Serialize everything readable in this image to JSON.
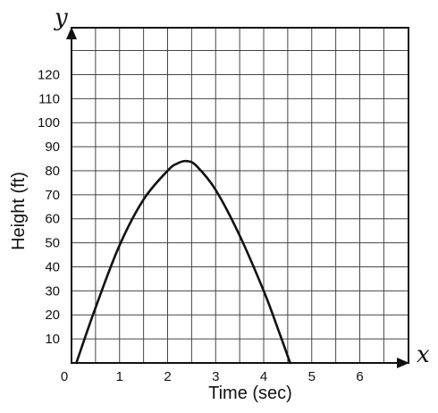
{
  "chart_data": {
    "type": "line",
    "title": "",
    "xlabel": "Time (sec)",
    "ylabel": "Height (ft)",
    "x_axis_letter": "x",
    "y_axis_letter": "y",
    "xlim": [
      0,
      7
    ],
    "ylim": [
      0,
      140
    ],
    "x_ticks": [
      {
        "value": 0,
        "label": "0"
      },
      {
        "value": 1,
        "label": "1"
      },
      {
        "value": 2,
        "label": "2"
      },
      {
        "value": 3,
        "label": "3"
      },
      {
        "value": 4,
        "label": "4"
      },
      {
        "value": 5,
        "label": "5"
      },
      {
        "value": 6,
        "label": "6"
      }
    ],
    "y_ticks": [
      {
        "value": 10,
        "label": "10"
      },
      {
        "value": 20,
        "label": "20"
      },
      {
        "value": 30,
        "label": "30"
      },
      {
        "value": 40,
        "label": "40"
      },
      {
        "value": 50,
        "label": "50"
      },
      {
        "value": 60,
        "label": "60"
      },
      {
        "value": 70,
        "label": "70"
      },
      {
        "value": 80,
        "label": "80"
      },
      {
        "value": 90,
        "label": "90"
      },
      {
        "value": 100,
        "label": "100"
      },
      {
        "value": 110,
        "label": "110"
      },
      {
        "value": 120,
        "label": "120"
      }
    ],
    "grid": true,
    "grid_step_x": 0.5,
    "grid_step_y": 10,
    "series": [
      {
        "x": [
          0.1,
          0.5,
          1.0,
          1.5,
          2.0,
          2.2,
          2.4,
          2.6,
          3.0,
          3.5,
          4.0,
          4.3,
          4.55
        ],
        "y": [
          0,
          23,
          49,
          68,
          80,
          83,
          84,
          82,
          72,
          53,
          30,
          14,
          0
        ]
      }
    ]
  }
}
